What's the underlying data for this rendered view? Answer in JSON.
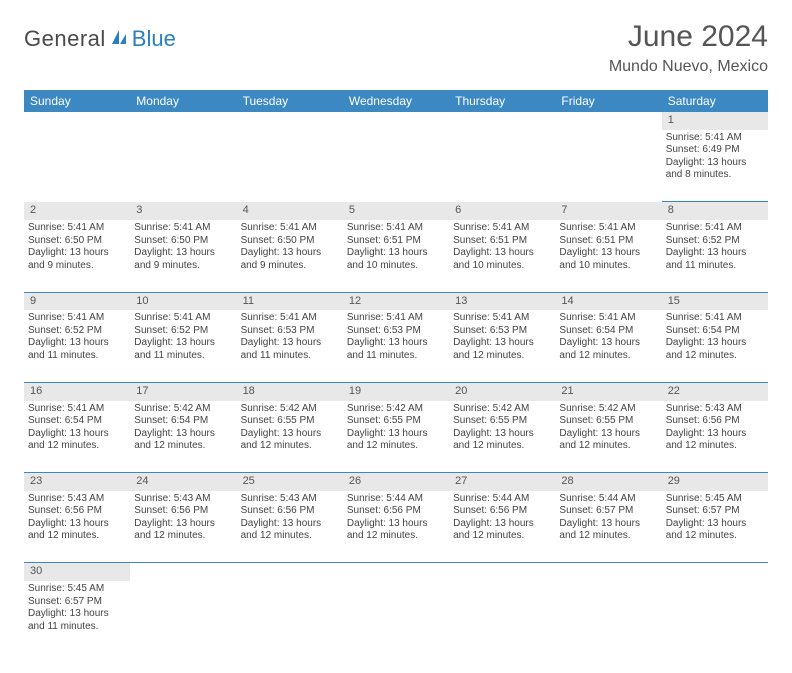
{
  "logo": {
    "main": "General",
    "sub": "Blue",
    "icon_color": "#2a7fbf"
  },
  "title": "June 2024",
  "location": "Mundo Nuevo, Mexico",
  "colors": {
    "header_bg": "#3b88c3",
    "header_text": "#ffffff",
    "daynum_bg": "#e8e8e8",
    "grid_line": "#3b88c3",
    "text": "#444444",
    "title_text": "#555555"
  },
  "typography": {
    "title_fontsize": 30,
    "location_fontsize": 16,
    "dayheader_fontsize": 12,
    "daynum_fontsize": 11,
    "cell_fontsize": 10
  },
  "calendar": {
    "columns": [
      "Sunday",
      "Monday",
      "Tuesday",
      "Wednesday",
      "Thursday",
      "Friday",
      "Saturday"
    ],
    "rows": [
      {
        "nums": [
          "",
          "",
          "",
          "",
          "",
          "",
          "1"
        ],
        "cells": [
          null,
          null,
          null,
          null,
          null,
          null,
          {
            "sunrise": "Sunrise: 5:41 AM",
            "sunset": "Sunset: 6:49 PM",
            "dl1": "Daylight: 13 hours",
            "dl2": "and 8 minutes."
          }
        ]
      },
      {
        "nums": [
          "2",
          "3",
          "4",
          "5",
          "6",
          "7",
          "8"
        ],
        "cells": [
          {
            "sunrise": "Sunrise: 5:41 AM",
            "sunset": "Sunset: 6:50 PM",
            "dl1": "Daylight: 13 hours",
            "dl2": "and 9 minutes."
          },
          {
            "sunrise": "Sunrise: 5:41 AM",
            "sunset": "Sunset: 6:50 PM",
            "dl1": "Daylight: 13 hours",
            "dl2": "and 9 minutes."
          },
          {
            "sunrise": "Sunrise: 5:41 AM",
            "sunset": "Sunset: 6:50 PM",
            "dl1": "Daylight: 13 hours",
            "dl2": "and 9 minutes."
          },
          {
            "sunrise": "Sunrise: 5:41 AM",
            "sunset": "Sunset: 6:51 PM",
            "dl1": "Daylight: 13 hours",
            "dl2": "and 10 minutes."
          },
          {
            "sunrise": "Sunrise: 5:41 AM",
            "sunset": "Sunset: 6:51 PM",
            "dl1": "Daylight: 13 hours",
            "dl2": "and 10 minutes."
          },
          {
            "sunrise": "Sunrise: 5:41 AM",
            "sunset": "Sunset: 6:51 PM",
            "dl1": "Daylight: 13 hours",
            "dl2": "and 10 minutes."
          },
          {
            "sunrise": "Sunrise: 5:41 AM",
            "sunset": "Sunset: 6:52 PM",
            "dl1": "Daylight: 13 hours",
            "dl2": "and 11 minutes."
          }
        ]
      },
      {
        "nums": [
          "9",
          "10",
          "11",
          "12",
          "13",
          "14",
          "15"
        ],
        "cells": [
          {
            "sunrise": "Sunrise: 5:41 AM",
            "sunset": "Sunset: 6:52 PM",
            "dl1": "Daylight: 13 hours",
            "dl2": "and 11 minutes."
          },
          {
            "sunrise": "Sunrise: 5:41 AM",
            "sunset": "Sunset: 6:52 PM",
            "dl1": "Daylight: 13 hours",
            "dl2": "and 11 minutes."
          },
          {
            "sunrise": "Sunrise: 5:41 AM",
            "sunset": "Sunset: 6:53 PM",
            "dl1": "Daylight: 13 hours",
            "dl2": "and 11 minutes."
          },
          {
            "sunrise": "Sunrise: 5:41 AM",
            "sunset": "Sunset: 6:53 PM",
            "dl1": "Daylight: 13 hours",
            "dl2": "and 11 minutes."
          },
          {
            "sunrise": "Sunrise: 5:41 AM",
            "sunset": "Sunset: 6:53 PM",
            "dl1": "Daylight: 13 hours",
            "dl2": "and 12 minutes."
          },
          {
            "sunrise": "Sunrise: 5:41 AM",
            "sunset": "Sunset: 6:54 PM",
            "dl1": "Daylight: 13 hours",
            "dl2": "and 12 minutes."
          },
          {
            "sunrise": "Sunrise: 5:41 AM",
            "sunset": "Sunset: 6:54 PM",
            "dl1": "Daylight: 13 hours",
            "dl2": "and 12 minutes."
          }
        ]
      },
      {
        "nums": [
          "16",
          "17",
          "18",
          "19",
          "20",
          "21",
          "22"
        ],
        "cells": [
          {
            "sunrise": "Sunrise: 5:41 AM",
            "sunset": "Sunset: 6:54 PM",
            "dl1": "Daylight: 13 hours",
            "dl2": "and 12 minutes."
          },
          {
            "sunrise": "Sunrise: 5:42 AM",
            "sunset": "Sunset: 6:54 PM",
            "dl1": "Daylight: 13 hours",
            "dl2": "and 12 minutes."
          },
          {
            "sunrise": "Sunrise: 5:42 AM",
            "sunset": "Sunset: 6:55 PM",
            "dl1": "Daylight: 13 hours",
            "dl2": "and 12 minutes."
          },
          {
            "sunrise": "Sunrise: 5:42 AM",
            "sunset": "Sunset: 6:55 PM",
            "dl1": "Daylight: 13 hours",
            "dl2": "and 12 minutes."
          },
          {
            "sunrise": "Sunrise: 5:42 AM",
            "sunset": "Sunset: 6:55 PM",
            "dl1": "Daylight: 13 hours",
            "dl2": "and 12 minutes."
          },
          {
            "sunrise": "Sunrise: 5:42 AM",
            "sunset": "Sunset: 6:55 PM",
            "dl1": "Daylight: 13 hours",
            "dl2": "and 12 minutes."
          },
          {
            "sunrise": "Sunrise: 5:43 AM",
            "sunset": "Sunset: 6:56 PM",
            "dl1": "Daylight: 13 hours",
            "dl2": "and 12 minutes."
          }
        ]
      },
      {
        "nums": [
          "23",
          "24",
          "25",
          "26",
          "27",
          "28",
          "29"
        ],
        "cells": [
          {
            "sunrise": "Sunrise: 5:43 AM",
            "sunset": "Sunset: 6:56 PM",
            "dl1": "Daylight: 13 hours",
            "dl2": "and 12 minutes."
          },
          {
            "sunrise": "Sunrise: 5:43 AM",
            "sunset": "Sunset: 6:56 PM",
            "dl1": "Daylight: 13 hours",
            "dl2": "and 12 minutes."
          },
          {
            "sunrise": "Sunrise: 5:43 AM",
            "sunset": "Sunset: 6:56 PM",
            "dl1": "Daylight: 13 hours",
            "dl2": "and 12 minutes."
          },
          {
            "sunrise": "Sunrise: 5:44 AM",
            "sunset": "Sunset: 6:56 PM",
            "dl1": "Daylight: 13 hours",
            "dl2": "and 12 minutes."
          },
          {
            "sunrise": "Sunrise: 5:44 AM",
            "sunset": "Sunset: 6:56 PM",
            "dl1": "Daylight: 13 hours",
            "dl2": "and 12 minutes."
          },
          {
            "sunrise": "Sunrise: 5:44 AM",
            "sunset": "Sunset: 6:57 PM",
            "dl1": "Daylight: 13 hours",
            "dl2": "and 12 minutes."
          },
          {
            "sunrise": "Sunrise: 5:45 AM",
            "sunset": "Sunset: 6:57 PM",
            "dl1": "Daylight: 13 hours",
            "dl2": "and 12 minutes."
          }
        ]
      },
      {
        "nums": [
          "30",
          "",
          "",
          "",
          "",
          "",
          ""
        ],
        "cells": [
          {
            "sunrise": "Sunrise: 5:45 AM",
            "sunset": "Sunset: 6:57 PM",
            "dl1": "Daylight: 13 hours",
            "dl2": "and 11 minutes."
          },
          null,
          null,
          null,
          null,
          null,
          null
        ]
      }
    ]
  }
}
